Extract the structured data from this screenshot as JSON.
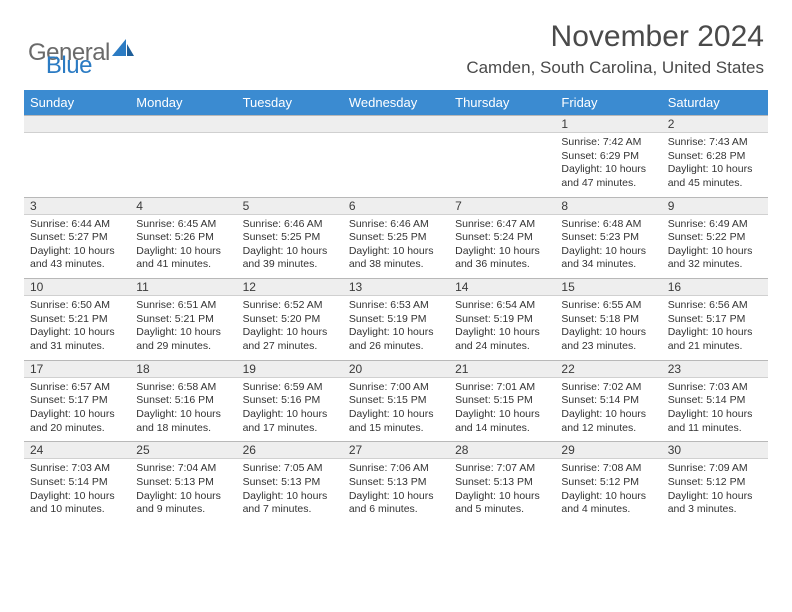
{
  "logo": {
    "general": "General",
    "blue": "Blue"
  },
  "title": "November 2024",
  "location": "Camden, South Carolina, United States",
  "day_headers": [
    "Sunday",
    "Monday",
    "Tuesday",
    "Wednesday",
    "Thursday",
    "Friday",
    "Saturday"
  ],
  "colors": {
    "header_bg": "#3b8bd1",
    "header_text": "#ffffff",
    "date_bar_bg": "#eeeeee",
    "body_text": "#333333",
    "logo_gray": "#6a6a6a",
    "logo_blue": "#2b7bc3"
  },
  "weeks": [
    [
      {
        "date": "",
        "text": ""
      },
      {
        "date": "",
        "text": ""
      },
      {
        "date": "",
        "text": ""
      },
      {
        "date": "",
        "text": ""
      },
      {
        "date": "",
        "text": ""
      },
      {
        "date": "1",
        "text": "Sunrise: 7:42 AM\nSunset: 6:29 PM\nDaylight: 10 hours and 47 minutes."
      },
      {
        "date": "2",
        "text": "Sunrise: 7:43 AM\nSunset: 6:28 PM\nDaylight: 10 hours and 45 minutes."
      }
    ],
    [
      {
        "date": "3",
        "text": "Sunrise: 6:44 AM\nSunset: 5:27 PM\nDaylight: 10 hours and 43 minutes."
      },
      {
        "date": "4",
        "text": "Sunrise: 6:45 AM\nSunset: 5:26 PM\nDaylight: 10 hours and 41 minutes."
      },
      {
        "date": "5",
        "text": "Sunrise: 6:46 AM\nSunset: 5:25 PM\nDaylight: 10 hours and 39 minutes."
      },
      {
        "date": "6",
        "text": "Sunrise: 6:46 AM\nSunset: 5:25 PM\nDaylight: 10 hours and 38 minutes."
      },
      {
        "date": "7",
        "text": "Sunrise: 6:47 AM\nSunset: 5:24 PM\nDaylight: 10 hours and 36 minutes."
      },
      {
        "date": "8",
        "text": "Sunrise: 6:48 AM\nSunset: 5:23 PM\nDaylight: 10 hours and 34 minutes."
      },
      {
        "date": "9",
        "text": "Sunrise: 6:49 AM\nSunset: 5:22 PM\nDaylight: 10 hours and 32 minutes."
      }
    ],
    [
      {
        "date": "10",
        "text": "Sunrise: 6:50 AM\nSunset: 5:21 PM\nDaylight: 10 hours and 31 minutes."
      },
      {
        "date": "11",
        "text": "Sunrise: 6:51 AM\nSunset: 5:21 PM\nDaylight: 10 hours and 29 minutes."
      },
      {
        "date": "12",
        "text": "Sunrise: 6:52 AM\nSunset: 5:20 PM\nDaylight: 10 hours and 27 minutes."
      },
      {
        "date": "13",
        "text": "Sunrise: 6:53 AM\nSunset: 5:19 PM\nDaylight: 10 hours and 26 minutes."
      },
      {
        "date": "14",
        "text": "Sunrise: 6:54 AM\nSunset: 5:19 PM\nDaylight: 10 hours and 24 minutes."
      },
      {
        "date": "15",
        "text": "Sunrise: 6:55 AM\nSunset: 5:18 PM\nDaylight: 10 hours and 23 minutes."
      },
      {
        "date": "16",
        "text": "Sunrise: 6:56 AM\nSunset: 5:17 PM\nDaylight: 10 hours and 21 minutes."
      }
    ],
    [
      {
        "date": "17",
        "text": "Sunrise: 6:57 AM\nSunset: 5:17 PM\nDaylight: 10 hours and 20 minutes."
      },
      {
        "date": "18",
        "text": "Sunrise: 6:58 AM\nSunset: 5:16 PM\nDaylight: 10 hours and 18 minutes."
      },
      {
        "date": "19",
        "text": "Sunrise: 6:59 AM\nSunset: 5:16 PM\nDaylight: 10 hours and 17 minutes."
      },
      {
        "date": "20",
        "text": "Sunrise: 7:00 AM\nSunset: 5:15 PM\nDaylight: 10 hours and 15 minutes."
      },
      {
        "date": "21",
        "text": "Sunrise: 7:01 AM\nSunset: 5:15 PM\nDaylight: 10 hours and 14 minutes."
      },
      {
        "date": "22",
        "text": "Sunrise: 7:02 AM\nSunset: 5:14 PM\nDaylight: 10 hours and 12 minutes."
      },
      {
        "date": "23",
        "text": "Sunrise: 7:03 AM\nSunset: 5:14 PM\nDaylight: 10 hours and 11 minutes."
      }
    ],
    [
      {
        "date": "24",
        "text": "Sunrise: 7:03 AM\nSunset: 5:14 PM\nDaylight: 10 hours and 10 minutes."
      },
      {
        "date": "25",
        "text": "Sunrise: 7:04 AM\nSunset: 5:13 PM\nDaylight: 10 hours and 9 minutes."
      },
      {
        "date": "26",
        "text": "Sunrise: 7:05 AM\nSunset: 5:13 PM\nDaylight: 10 hours and 7 minutes."
      },
      {
        "date": "27",
        "text": "Sunrise: 7:06 AM\nSunset: 5:13 PM\nDaylight: 10 hours and 6 minutes."
      },
      {
        "date": "28",
        "text": "Sunrise: 7:07 AM\nSunset: 5:13 PM\nDaylight: 10 hours and 5 minutes."
      },
      {
        "date": "29",
        "text": "Sunrise: 7:08 AM\nSunset: 5:12 PM\nDaylight: 10 hours and 4 minutes."
      },
      {
        "date": "30",
        "text": "Sunrise: 7:09 AM\nSunset: 5:12 PM\nDaylight: 10 hours and 3 minutes."
      }
    ]
  ]
}
